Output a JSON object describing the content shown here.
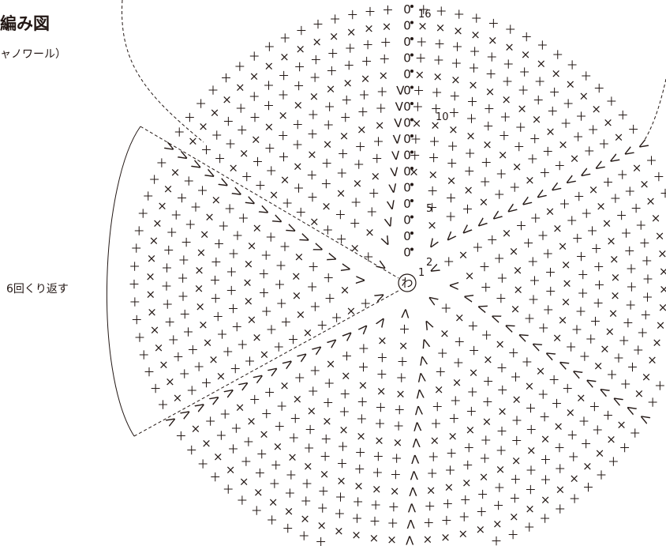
{
  "diagram": {
    "title": "編み図",
    "subtitle": "ャノワール）",
    "repeat_label": "6回くり返す",
    "center_ring_label": "わ",
    "row_numbers": [
      "1",
      "2",
      "5",
      "10",
      "16"
    ],
    "rows_total": 16,
    "repeat_sections": 6,
    "line_color": "#231815",
    "symbols": {
      "single_crochet_icon": "＋",
      "single_crochet_back_loop_icon": "×",
      "increase_icon": "V",
      "chain_icon": "0",
      "slip_stitch_icon": "•"
    }
  }
}
